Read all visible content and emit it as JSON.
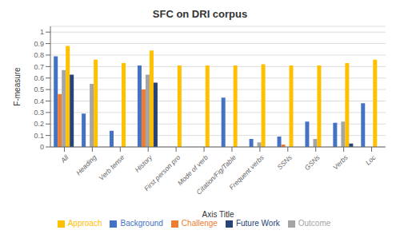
{
  "chart_data": {
    "type": "bar",
    "title": "SFC on DRI corpus",
    "xlabel": "Axis Title",
    "ylabel": "F-measure",
    "categories": [
      "All",
      "Heading",
      "Verb tense",
      "History",
      "First person pro",
      "Mode of verb",
      "Citation/Fig/Table",
      "Frequent verbs",
      "SSNs",
      "GSNs",
      "Verbs",
      "Loc"
    ],
    "series": [
      {
        "name": "Background",
        "color": "#4472C4",
        "values": [
          0.79,
          0.29,
          0.14,
          0.71,
          0.0,
          0.0,
          0.43,
          0.07,
          0.09,
          0.22,
          0.21,
          0.38
        ]
      },
      {
        "name": "Challenge",
        "color": "#ED7D31",
        "values": [
          0.46,
          0.0,
          0.0,
          0.5,
          0.0,
          0.0,
          0.0,
          0.0,
          0.02,
          0.0,
          0.0,
          0.0
        ]
      },
      {
        "name": "Outcome",
        "color": "#A5A5A5",
        "values": [
          0.67,
          0.55,
          0.0,
          0.63,
          0.0,
          0.0,
          0.0,
          0.04,
          0.0,
          0.07,
          0.22,
          0.0
        ]
      },
      {
        "name": "Approach",
        "color": "#FFC000",
        "values": [
          0.88,
          0.76,
          0.73,
          0.84,
          0.71,
          0.71,
          0.71,
          0.72,
          0.71,
          0.71,
          0.73,
          0.76
        ]
      },
      {
        "name": "Future Work",
        "color": "#264478",
        "values": [
          0.63,
          0.0,
          0.0,
          0.56,
          0.0,
          0.0,
          0.0,
          0.0,
          0.0,
          0.0,
          0.03,
          0.0
        ]
      }
    ],
    "ylim": [
      0,
      1.05
    ],
    "yticks": [
      0,
      0.1,
      0.2,
      0.3,
      0.4,
      0.5,
      0.6,
      0.7,
      0.8,
      0.9,
      1
    ],
    "grid": true,
    "legend": "bottom"
  }
}
